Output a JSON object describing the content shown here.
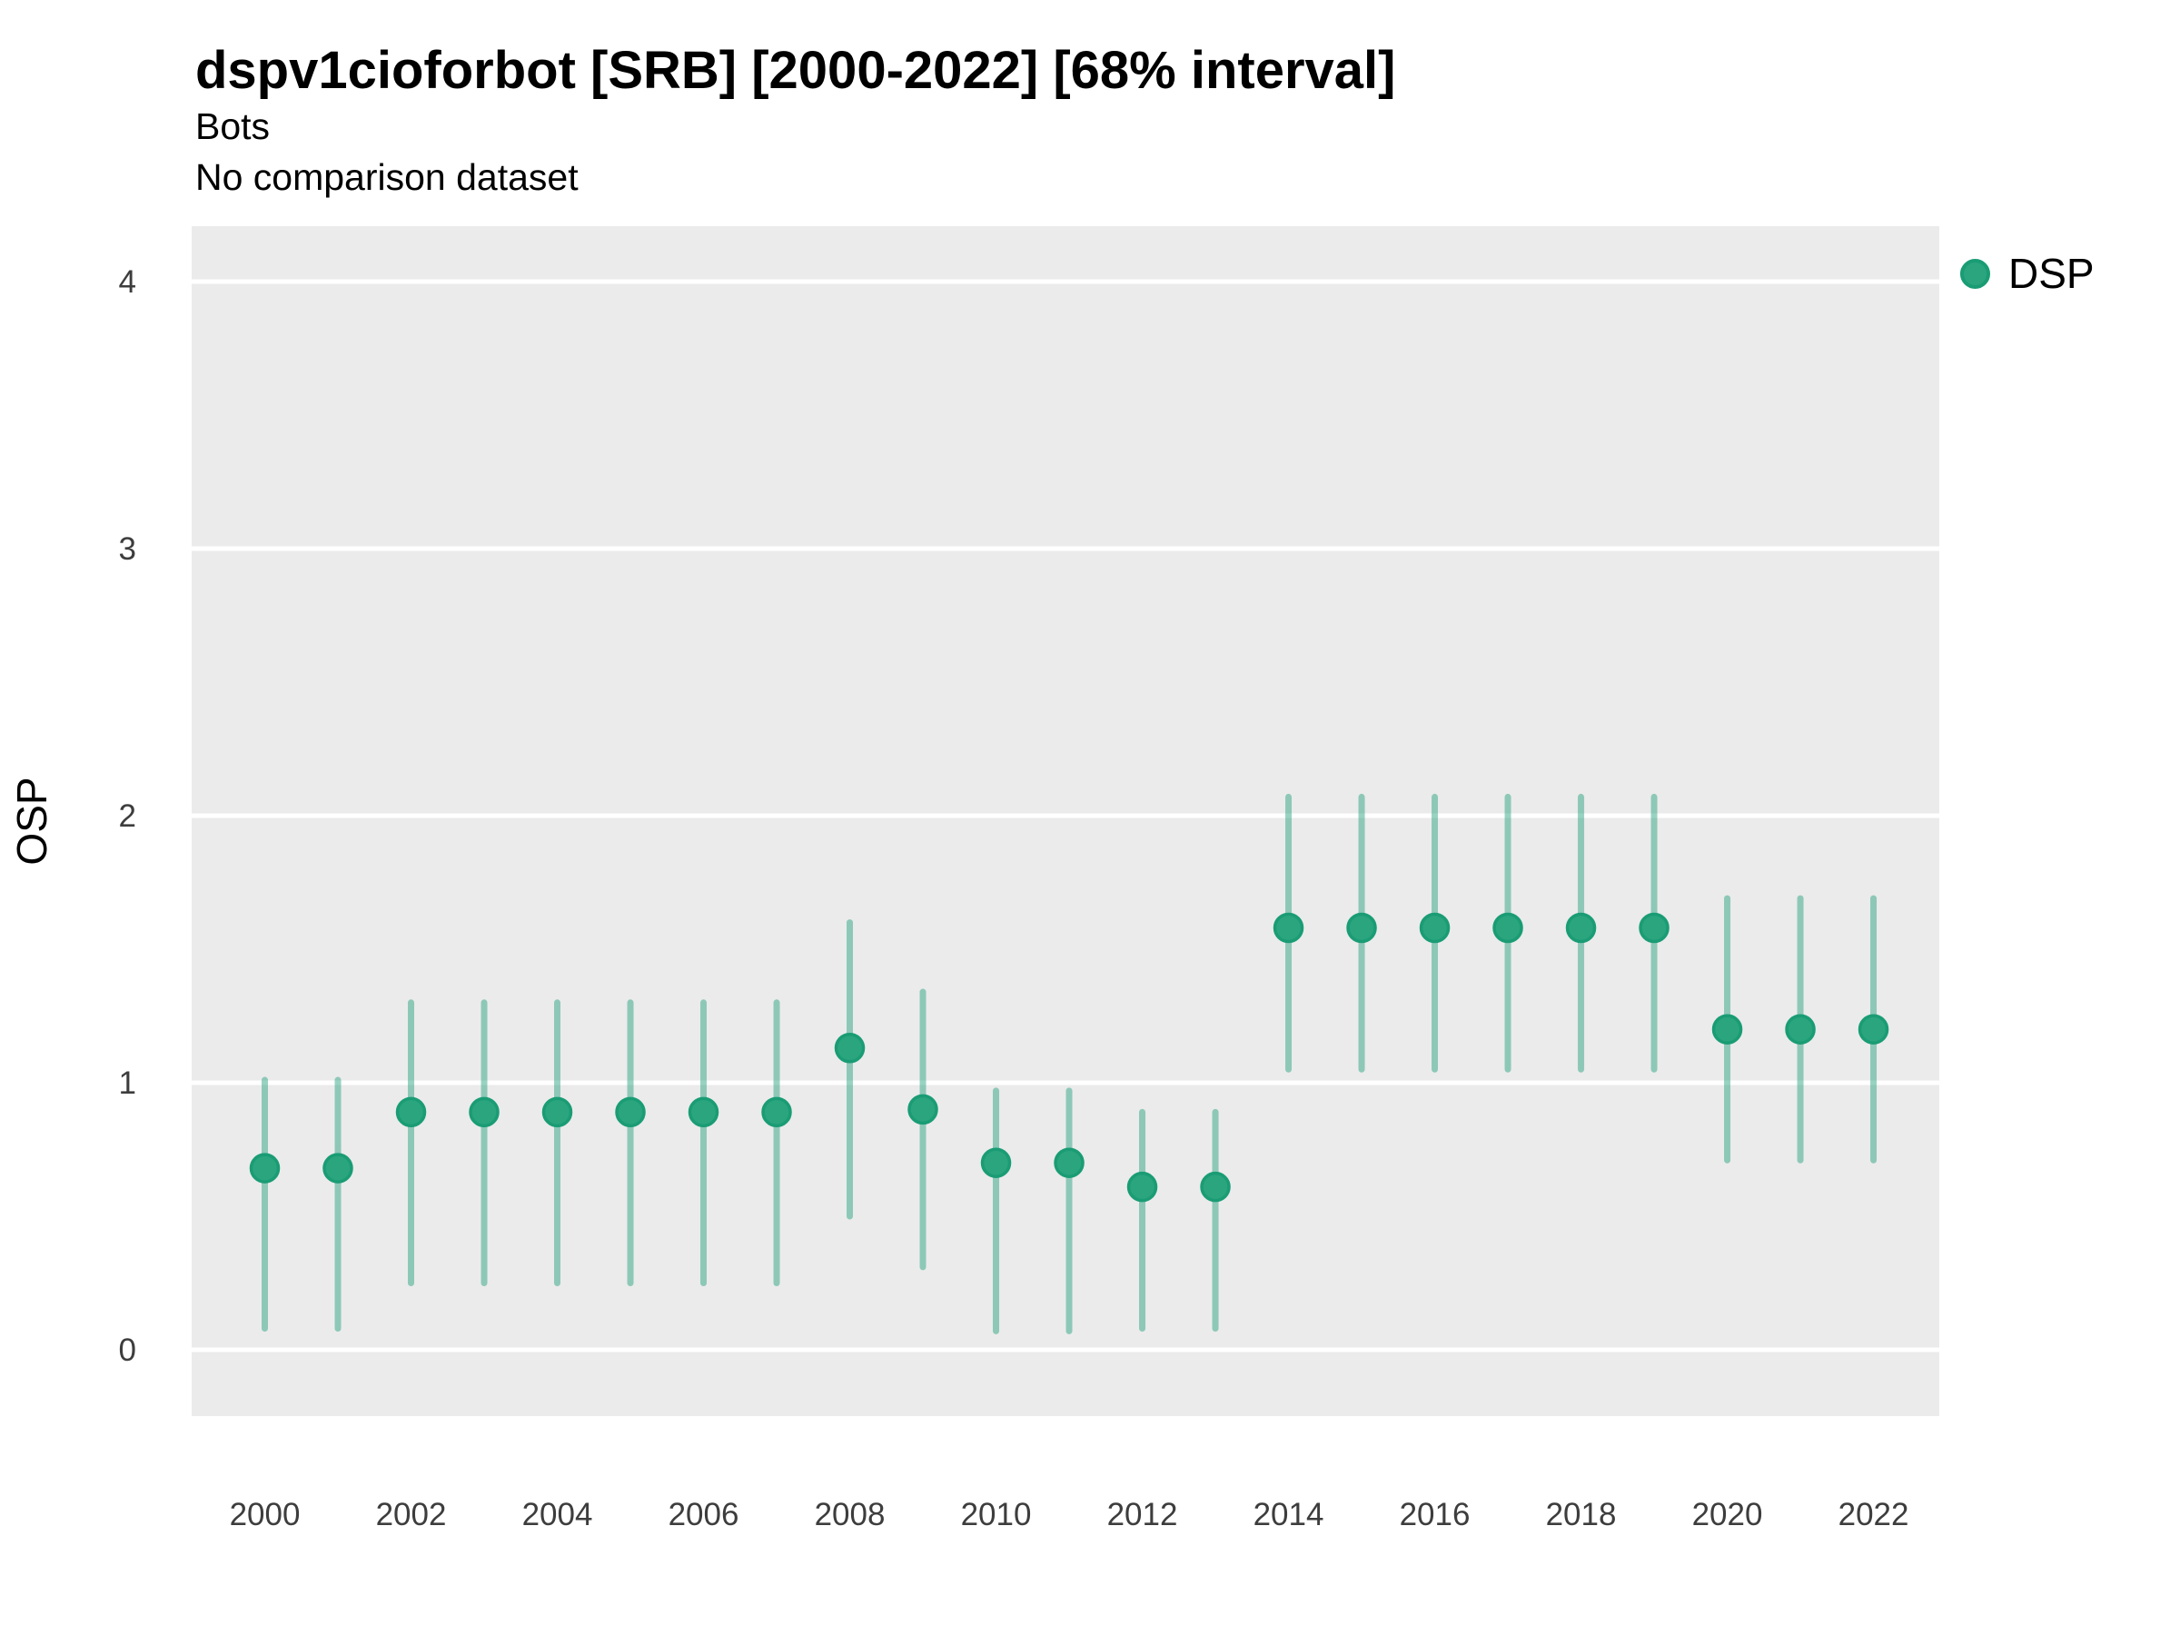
{
  "header": {
    "title": "dspv1cioforbot [SRB] [2000-2022] [68% interval]",
    "subtitle": "Bots",
    "note": "No comparison dataset"
  },
  "legend": {
    "position": "right",
    "items": [
      {
        "label": "DSP",
        "marker": "circle-icon",
        "color": "#2BA57D"
      }
    ]
  },
  "colors": {
    "point_fill": "#2BA57D",
    "point_stroke": "#1A9C74",
    "interval_line": "rgba(27,158,119,0.45)",
    "panel_background": "#EBEBEB",
    "gridline": "#FFFFFF"
  },
  "chart_data": {
    "type": "scatter",
    "variant": "pointrange",
    "title": "dspv1cioforbot [SRB] [2000-2022] [68% interval]",
    "subtitle": "Bots",
    "note": "No comparison dataset",
    "xlabel": "",
    "ylabel": "OSP",
    "interval_level": "68%",
    "ylim": [
      -0.25,
      4.2
    ],
    "yticks": [
      0,
      1,
      2,
      3,
      4
    ],
    "xtick_labels": [
      "2000",
      "2002",
      "2004",
      "2006",
      "2008",
      "2010",
      "2012",
      "2014",
      "2016",
      "2018",
      "2020",
      "2022"
    ],
    "grid": "major-horizontal",
    "legend_position": "right",
    "series": [
      {
        "name": "DSP",
        "color": "#1B9E77",
        "points": [
          {
            "x": 2000,
            "y": 0.68,
            "low": 0.08,
            "high": 1.01
          },
          {
            "x": 2001,
            "y": 0.68,
            "low": 0.08,
            "high": 1.01
          },
          {
            "x": 2002,
            "y": 0.89,
            "low": 0.25,
            "high": 1.3
          },
          {
            "x": 2003,
            "y": 0.89,
            "low": 0.25,
            "high": 1.3
          },
          {
            "x": 2004,
            "y": 0.89,
            "low": 0.25,
            "high": 1.3
          },
          {
            "x": 2005,
            "y": 0.89,
            "low": 0.25,
            "high": 1.3
          },
          {
            "x": 2006,
            "y": 0.89,
            "low": 0.25,
            "high": 1.3
          },
          {
            "x": 2007,
            "y": 0.89,
            "low": 0.25,
            "high": 1.3
          },
          {
            "x": 2008,
            "y": 1.13,
            "low": 0.5,
            "high": 1.6
          },
          {
            "x": 2009,
            "y": 0.9,
            "low": 0.31,
            "high": 1.34
          },
          {
            "x": 2010,
            "y": 0.7,
            "low": 0.07,
            "high": 0.97
          },
          {
            "x": 2011,
            "y": 0.7,
            "low": 0.07,
            "high": 0.97
          },
          {
            "x": 2012,
            "y": 0.61,
            "low": 0.08,
            "high": 0.89
          },
          {
            "x": 2013,
            "y": 0.61,
            "low": 0.08,
            "high": 0.89
          },
          {
            "x": 2014,
            "y": 1.58,
            "low": 1.05,
            "high": 2.07
          },
          {
            "x": 2015,
            "y": 1.58,
            "low": 1.05,
            "high": 2.07
          },
          {
            "x": 2016,
            "y": 1.58,
            "low": 1.05,
            "high": 2.07
          },
          {
            "x": 2017,
            "y": 1.58,
            "low": 1.05,
            "high": 2.07
          },
          {
            "x": 2018,
            "y": 1.58,
            "low": 1.05,
            "high": 2.07
          },
          {
            "x": 2019,
            "y": 1.58,
            "low": 1.05,
            "high": 2.07
          },
          {
            "x": 2020,
            "y": 1.2,
            "low": 0.71,
            "high": 1.69
          },
          {
            "x": 2021,
            "y": 1.2,
            "low": 0.71,
            "high": 1.69
          },
          {
            "x": 2022,
            "y": 1.2,
            "low": 0.71,
            "high": 1.69
          }
        ]
      }
    ]
  }
}
